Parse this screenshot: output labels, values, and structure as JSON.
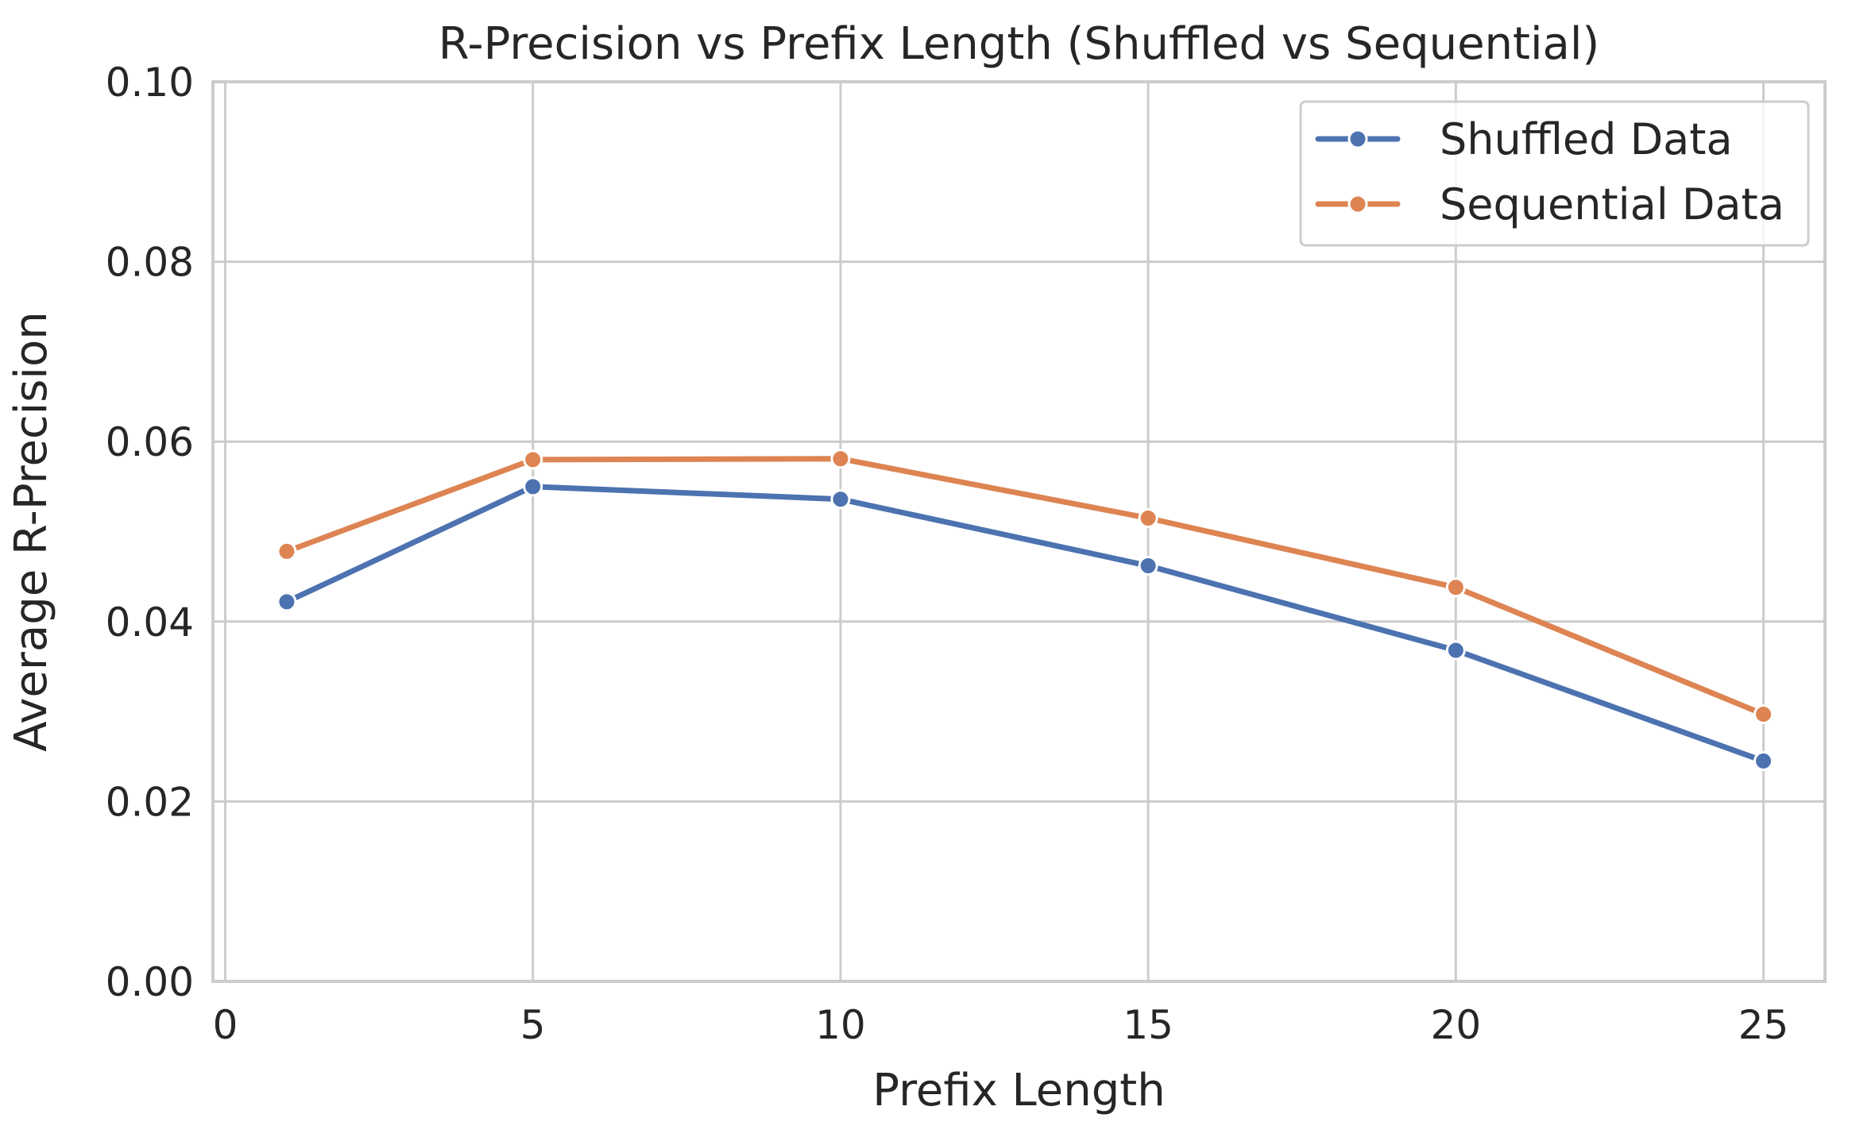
{
  "chart_data": {
    "type": "line",
    "title": "R-Precision vs Prefix Length (Shuffled vs Sequential)",
    "xlabel": "Prefix Length",
    "ylabel": "Average R-Precision",
    "xlim": [
      -0.2,
      26.0
    ],
    "ylim": [
      0.0,
      0.1
    ],
    "xticks": [
      0,
      5,
      10,
      15,
      20,
      25
    ],
    "xtick_labels": [
      "0",
      "5",
      "10",
      "15",
      "20",
      "25"
    ],
    "yticks": [
      0.0,
      0.02,
      0.04,
      0.06,
      0.08,
      0.1
    ],
    "ytick_labels": [
      "0.00",
      "0.02",
      "0.04",
      "0.06",
      "0.08",
      "0.10"
    ],
    "grid": true,
    "legend_position": "top-right",
    "x": [
      1,
      5,
      10,
      15,
      20,
      25
    ],
    "series": [
      {
        "name": "Shuffled Data",
        "color": "#4c72b0",
        "values": [
          0.0422,
          0.055,
          0.0536,
          0.0462,
          0.0368,
          0.0245
        ]
      },
      {
        "name": "Sequential Data",
        "color": "#dd8452",
        "values": [
          0.0478,
          0.058,
          0.0581,
          0.0515,
          0.0438,
          0.0297
        ]
      }
    ]
  }
}
